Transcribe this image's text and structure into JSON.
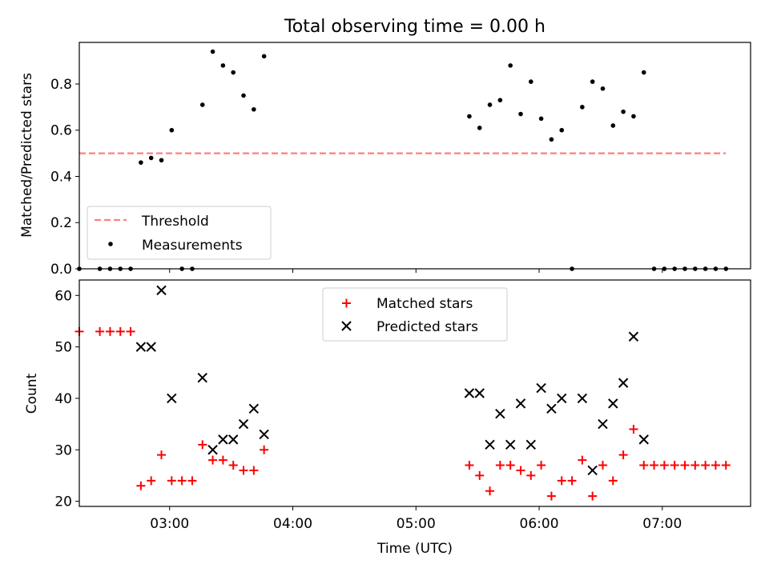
{
  "chart_data": [
    {
      "type": "scatter",
      "title": "Total observing time = 0.00 h",
      "xlabel": "",
      "ylabel": "Matched/Predicted stars",
      "xlim": [
        "02:16",
        "07:43"
      ],
      "ylim": [
        0,
        0.98
      ],
      "y_ticks": [
        "0.0",
        "0.2",
        "0.4",
        "0.6",
        "0.8"
      ],
      "x_ticks": [
        "03:00",
        "04:00",
        "05:00",
        "06:00",
        "07:00"
      ],
      "x_ticks_labeled": false,
      "legend": {
        "position": "lower-left",
        "entries": [
          "Threshold",
          "Measurements"
        ]
      },
      "threshold": {
        "name": "Threshold",
        "value": 0.5,
        "x_range": [
          "02:16",
          "07:31"
        ],
        "color": "#ff7f7f",
        "style": "dashed"
      },
      "series": [
        {
          "name": "Measurements",
          "marker": "dot",
          "color": "#000000",
          "points": [
            [
              "02:16",
              0.0
            ],
            [
              "02:26",
              0.0
            ],
            [
              "02:31",
              0.0
            ],
            [
              "02:36",
              0.0
            ],
            [
              "02:41",
              0.0
            ],
            [
              "02:46",
              0.46
            ],
            [
              "02:51",
              0.48
            ],
            [
              "02:56",
              0.47
            ],
            [
              "03:01",
              0.6
            ],
            [
              "03:06",
              0.0
            ],
            [
              "03:11",
              0.0
            ],
            [
              "03:16",
              0.71
            ],
            [
              "03:21",
              0.94
            ],
            [
              "03:26",
              0.88
            ],
            [
              "03:31",
              0.85
            ],
            [
              "03:36",
              0.75
            ],
            [
              "03:41",
              0.69
            ],
            [
              "03:46",
              0.92
            ],
            [
              "05:26",
              0.66
            ],
            [
              "05:31",
              0.61
            ],
            [
              "05:36",
              0.71
            ],
            [
              "05:41",
              0.73
            ],
            [
              "05:46",
              0.88
            ],
            [
              "05:51",
              0.67
            ],
            [
              "05:56",
              0.81
            ],
            [
              "06:01",
              0.65
            ],
            [
              "06:06",
              0.56
            ],
            [
              "06:11",
              0.6
            ],
            [
              "06:16",
              0.0
            ],
            [
              "06:21",
              0.7
            ],
            [
              "06:26",
              0.81
            ],
            [
              "06:31",
              0.78
            ],
            [
              "06:36",
              0.62
            ],
            [
              "06:41",
              0.68
            ],
            [
              "06:46",
              0.66
            ],
            [
              "06:51",
              0.85
            ],
            [
              "06:56",
              0.0
            ],
            [
              "07:01",
              0.0
            ],
            [
              "07:06",
              0.0
            ],
            [
              "07:11",
              0.0
            ],
            [
              "07:16",
              0.0
            ],
            [
              "07:21",
              0.0
            ],
            [
              "07:26",
              0.0
            ],
            [
              "07:31",
              0.0
            ]
          ]
        }
      ]
    },
    {
      "type": "scatter",
      "title": "",
      "xlabel": "Time (UTC)",
      "ylabel": "Count",
      "xlim": [
        "02:16",
        "07:43"
      ],
      "ylim": [
        19,
        63
      ],
      "y_ticks": [
        "20",
        "30",
        "40",
        "50",
        "60"
      ],
      "x_ticks": [
        "03:00",
        "04:00",
        "05:00",
        "06:00",
        "07:00"
      ],
      "x_ticks_labeled": true,
      "legend": {
        "position": "upper-center",
        "entries": [
          "Matched stars",
          "Predicted stars"
        ]
      },
      "series": [
        {
          "name": "Matched stars",
          "marker": "plus",
          "color": "#ff0000",
          "points": [
            [
              "02:16",
              53
            ],
            [
              "02:26",
              53
            ],
            [
              "02:31",
              53
            ],
            [
              "02:36",
              53
            ],
            [
              "02:41",
              53
            ],
            [
              "02:46",
              23
            ],
            [
              "02:51",
              24
            ],
            [
              "02:56",
              29
            ],
            [
              "03:01",
              24
            ],
            [
              "03:06",
              24
            ],
            [
              "03:11",
              24
            ],
            [
              "03:16",
              31
            ],
            [
              "03:21",
              28
            ],
            [
              "03:26",
              28
            ],
            [
              "03:31",
              27
            ],
            [
              "03:36",
              26
            ],
            [
              "03:41",
              26
            ],
            [
              "03:46",
              30
            ],
            [
              "05:26",
              27
            ],
            [
              "05:31",
              25
            ],
            [
              "05:36",
              22
            ],
            [
              "05:41",
              27
            ],
            [
              "05:46",
              27
            ],
            [
              "05:51",
              26
            ],
            [
              "05:56",
              25
            ],
            [
              "06:01",
              27
            ],
            [
              "06:06",
              21
            ],
            [
              "06:11",
              24
            ],
            [
              "06:16",
              24
            ],
            [
              "06:21",
              28
            ],
            [
              "06:26",
              21
            ],
            [
              "06:31",
              27
            ],
            [
              "06:36",
              24
            ],
            [
              "06:41",
              29
            ],
            [
              "06:46",
              34
            ],
            [
              "06:51",
              27
            ],
            [
              "06:56",
              27
            ],
            [
              "07:01",
              27
            ],
            [
              "07:06",
              27
            ],
            [
              "07:11",
              27
            ],
            [
              "07:16",
              27
            ],
            [
              "07:21",
              27
            ],
            [
              "07:26",
              27
            ],
            [
              "07:31",
              27
            ]
          ]
        },
        {
          "name": "Predicted stars",
          "marker": "x",
          "color": "#000000",
          "points": [
            [
              "02:46",
              50
            ],
            [
              "02:51",
              50
            ],
            [
              "02:56",
              61
            ],
            [
              "03:01",
              40
            ],
            [
              "03:16",
              44
            ],
            [
              "03:21",
              30
            ],
            [
              "03:26",
              32
            ],
            [
              "03:31",
              32
            ],
            [
              "03:36",
              35
            ],
            [
              "03:41",
              38
            ],
            [
              "03:46",
              33
            ],
            [
              "05:26",
              41
            ],
            [
              "05:31",
              41
            ],
            [
              "05:36",
              31
            ],
            [
              "05:41",
              37
            ],
            [
              "05:46",
              31
            ],
            [
              "05:51",
              39
            ],
            [
              "05:56",
              31
            ],
            [
              "06:01",
              42
            ],
            [
              "06:06",
              38
            ],
            [
              "06:11",
              40
            ],
            [
              "06:21",
              40
            ],
            [
              "06:26",
              26
            ],
            [
              "06:31",
              35
            ],
            [
              "06:36",
              39
            ],
            [
              "06:41",
              43
            ],
            [
              "06:46",
              52
            ],
            [
              "06:51",
              32
            ]
          ]
        }
      ]
    }
  ]
}
